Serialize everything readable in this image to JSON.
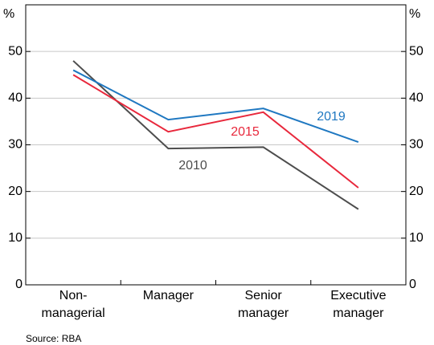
{
  "chart_data": {
    "type": "line",
    "ylabel": "%",
    "y2label": "%",
    "categories": [
      [
        "Non-",
        "managerial"
      ],
      [
        "Manager"
      ],
      [
        "Senior",
        "manager"
      ],
      [
        "Executive",
        "manager"
      ]
    ],
    "series": [
      {
        "name": "2010",
        "color": "#4d4d4d",
        "values": [
          48,
          29.2,
          29.5,
          16.2
        ]
      },
      {
        "name": "2015",
        "color": "#e8283c",
        "values": [
          45,
          32.8,
          37,
          20.8
        ]
      },
      {
        "name": "2019",
        "color": "#1f78c1",
        "values": [
          46,
          35.4,
          37.8,
          30.6
        ]
      }
    ],
    "ylim": [
      0,
      60
    ],
    "yticks": [
      0,
      10,
      20,
      30,
      40,
      50
    ],
    "y2lim": [
      0,
      60
    ],
    "y2ticks": [
      0,
      10,
      20,
      30,
      40,
      50
    ],
    "grid": true,
    "source": "Source:   RBA"
  }
}
